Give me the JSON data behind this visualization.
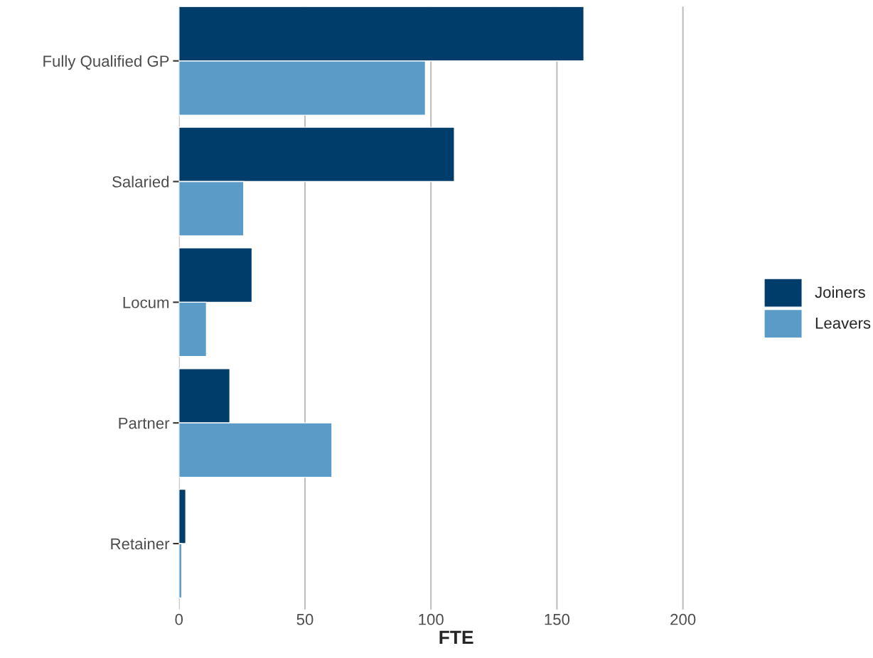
{
  "chart_data": {
    "type": "bar",
    "orientation": "horizontal",
    "xlabel": "FTE",
    "categories": [
      "Fully Qualified GP",
      "Salaried",
      "Locum",
      "Partner",
      "Retainer"
    ],
    "series": [
      {
        "name": "Joiners",
        "color": "#003d6b",
        "values": [
          160.7,
          109.3,
          29.0,
          20.2,
          2.7
        ]
      },
      {
        "name": "Leavers",
        "color": "#5b9bc8",
        "values": [
          97.8,
          25.7,
          10.9,
          60.7,
          1.1
        ]
      }
    ],
    "xlim": [
      0,
      220
    ],
    "xticks": [
      0,
      50,
      100,
      150,
      200
    ],
    "grid": "x",
    "legend": "right"
  }
}
